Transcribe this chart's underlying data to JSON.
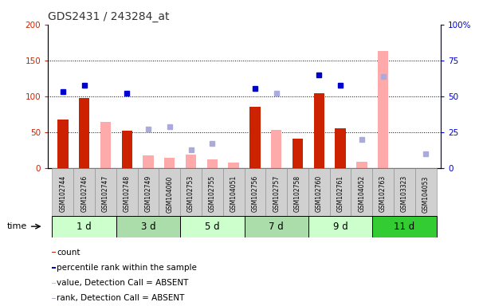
{
  "title": "GDS2431 / 243284_at",
  "samples": [
    "GSM102744",
    "GSM102746",
    "GSM102747",
    "GSM102748",
    "GSM102749",
    "GSM104060",
    "GSM102753",
    "GSM102755",
    "GSM104051",
    "GSM102756",
    "GSM102757",
    "GSM102758",
    "GSM102760",
    "GSM102761",
    "GSM104052",
    "GSM102763",
    "GSM103323",
    "GSM104053"
  ],
  "time_groups": [
    {
      "label": "1 d",
      "start": 0,
      "end": 3
    },
    {
      "label": "3 d",
      "start": 3,
      "end": 6
    },
    {
      "label": "5 d",
      "start": 6,
      "end": 9
    },
    {
      "label": "7 d",
      "start": 9,
      "end": 12
    },
    {
      "label": "9 d",
      "start": 12,
      "end": 15
    },
    {
      "label": "11 d",
      "start": 15,
      "end": 18
    }
  ],
  "time_group_colors": [
    "#ccffcc",
    "#aaddaa",
    "#ccffcc",
    "#aaddaa",
    "#ccffcc",
    "#33cc33"
  ],
  "count_present": [
    68,
    98,
    null,
    52,
    null,
    null,
    null,
    null,
    null,
    86,
    null,
    41,
    104,
    56,
    null,
    null,
    null,
    null
  ],
  "count_absent": [
    null,
    null,
    65,
    null,
    18,
    15,
    19,
    12,
    8,
    null,
    53,
    null,
    null,
    null,
    9,
    163,
    null,
    null
  ],
  "rank_present": [
    107,
    115,
    null,
    104,
    null,
    null,
    null,
    null,
    null,
    111,
    null,
    null,
    130,
    115,
    null,
    null,
    null,
    null
  ],
  "rank_absent": [
    null,
    null,
    null,
    null,
    55,
    58,
    26,
    35,
    null,
    null,
    104,
    null,
    null,
    null,
    40,
    128,
    null,
    20
  ],
  "ylim_left": [
    0,
    200
  ],
  "ylim_right": [
    0,
    100
  ],
  "yticks_left": [
    0,
    50,
    100,
    150,
    200
  ],
  "yticks_right": [
    0,
    25,
    50,
    75,
    100
  ],
  "ytick_labels_right": [
    "0",
    "25",
    "50",
    "75",
    "100%"
  ],
  "bar_width": 0.5,
  "color_count_present": "#cc2200",
  "color_count_absent": "#ffaaaa",
  "color_rank_present": "#0000cc",
  "color_rank_absent": "#aaaadd",
  "bg_plot": "#ffffff",
  "title_color": "#333333",
  "left_tick_color": "#cc2200",
  "right_tick_color": "#0000cc"
}
